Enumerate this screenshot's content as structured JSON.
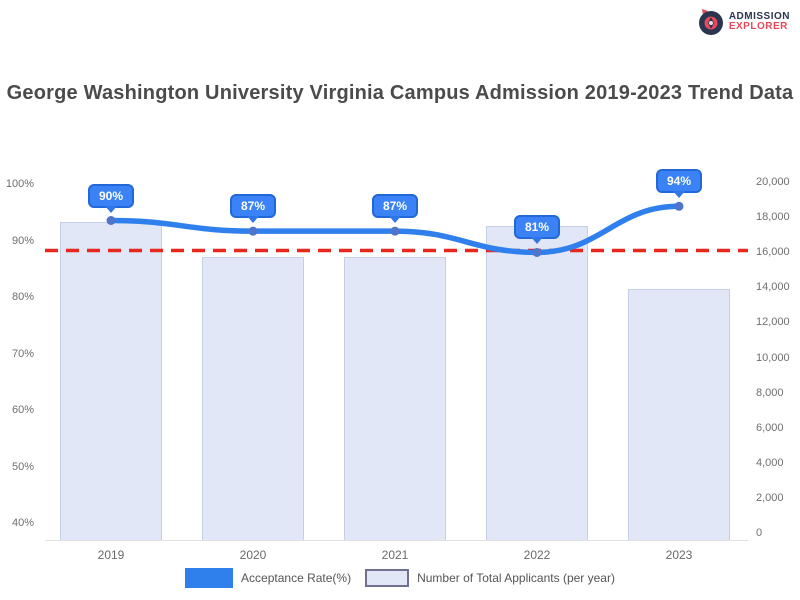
{
  "title": "George Washington University Virginia Campus Admission 2019-2023 Trend Data",
  "logo": {
    "line1": "ADMISSION",
    "line2": "EXPLORER"
  },
  "colors": {
    "line_blue": "#2f80ed",
    "badge_fill": "#3b82f6",
    "badge_border": "#2368d9",
    "bar_fill": "#e1e7f6",
    "bar_border": "#c6cfe8",
    "reference_red": "#e8271d",
    "title_text": "#4b4b4b",
    "axis_text": "#6f6f6f"
  },
  "chart_data": {
    "type": "combo (bar + line, dual axis)",
    "categories": [
      "2019",
      "2020",
      "2021",
      "2022",
      "2023"
    ],
    "series": [
      {
        "name": "Acceptance Rate(%)",
        "type": "line",
        "axis": "left",
        "unit": "%",
        "values": [
          90,
          87,
          87,
          81,
          94
        ],
        "data_labels": [
          "90%",
          "87%",
          "87%",
          "81%",
          "94%"
        ],
        "color": "#2f80ed"
      },
      {
        "name": "Number of Total Applicants (per year)",
        "type": "bar",
        "axis": "right",
        "values": [
          17700,
          15700,
          15700,
          17500,
          13900
        ],
        "color": "#e1e7f6",
        "note": "values estimated from bar heights against right axis"
      }
    ],
    "reference_line": {
      "axis": "right",
      "value": 16100,
      "style": "dashed",
      "color": "#e8271d",
      "meaning": "average of bar series (estimated)"
    },
    "axes": {
      "left": {
        "ticks": [
          "100%",
          "90%",
          "80%",
          "70%",
          "60%",
          "50%",
          "40%"
        ]
      },
      "right": {
        "ticks": [
          "20,000",
          "18,000",
          "16,000",
          "14,000",
          "12,000",
          "10,000",
          "8,000",
          "6,000",
          "4,000",
          "2,000",
          "0"
        ],
        "min": 0,
        "max": 20000
      },
      "x": {
        "ticks": [
          "2019",
          "2020",
          "2021",
          "2022",
          "2023"
        ]
      }
    },
    "legend": [
      {
        "label": "Acceptance Rate(%)",
        "swatch": "#2f80ed",
        "kind": "line"
      },
      {
        "label": "Number of Total Applicants (per year)",
        "swatch": "#e1e7f6",
        "kind": "bar"
      }
    ],
    "grid": false,
    "legend_position": "bottom"
  }
}
